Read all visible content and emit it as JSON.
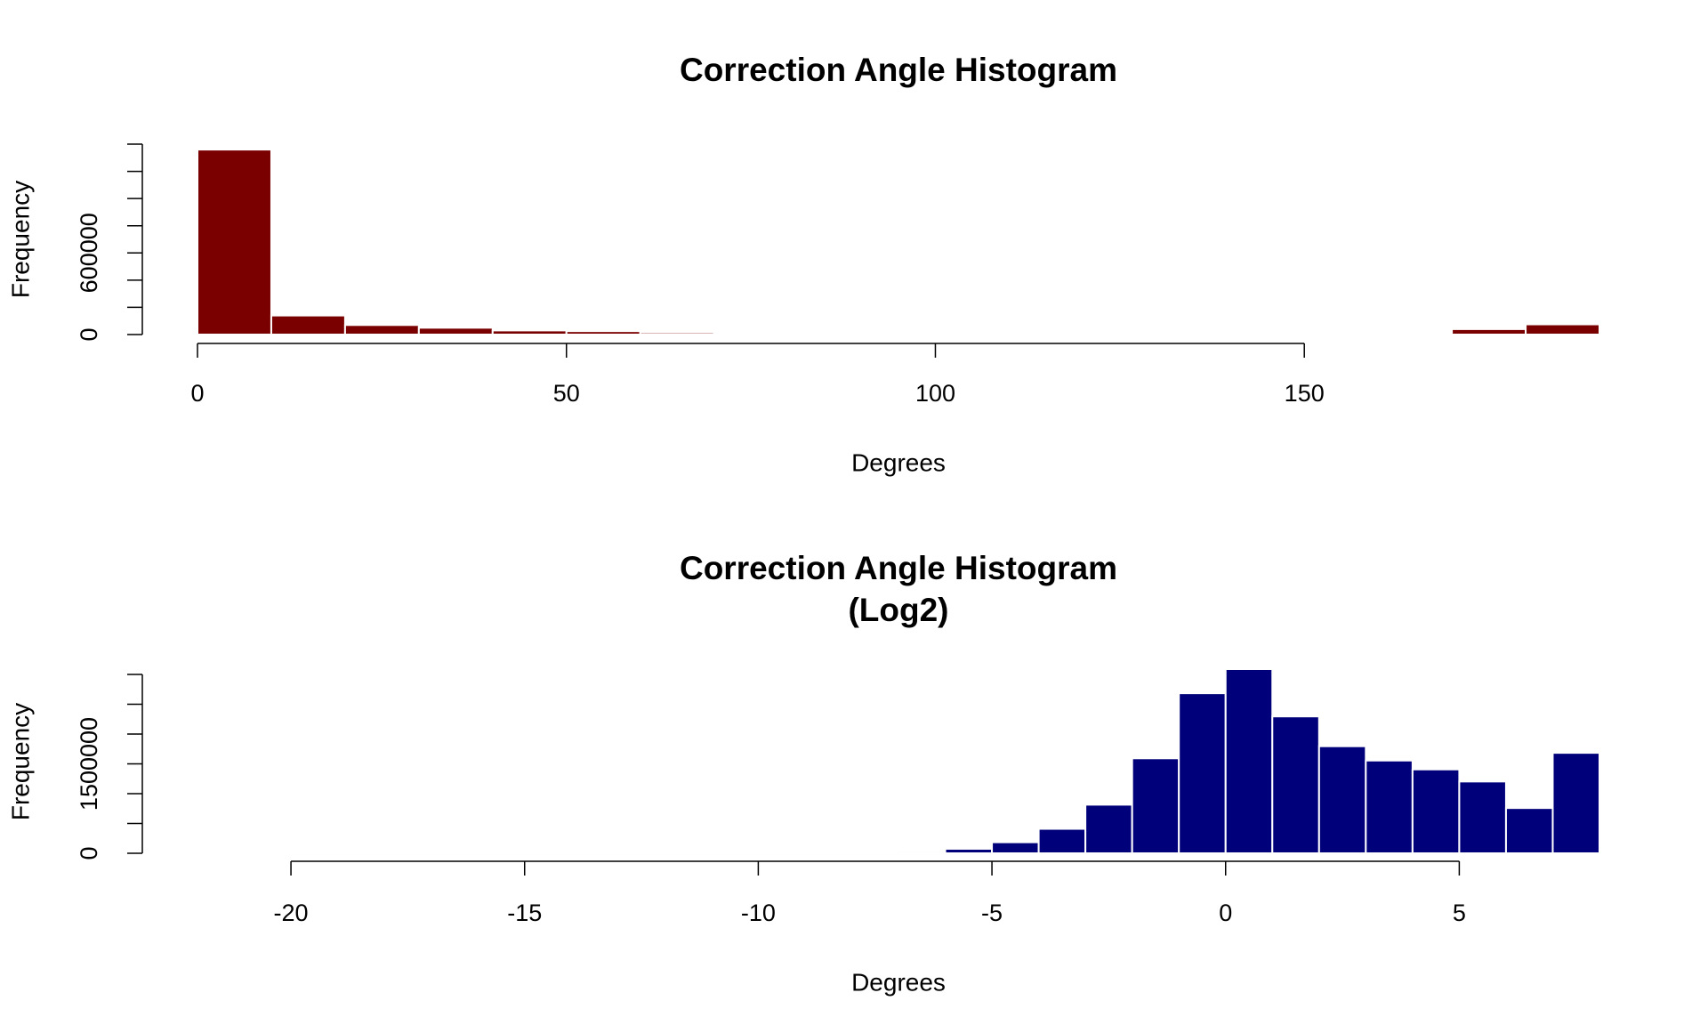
{
  "chart_data": [
    {
      "type": "histogram",
      "title": [
        "Correction Angle Histogram"
      ],
      "xlabel": "Degrees",
      "ylabel": "Frequency",
      "bins": [
        0,
        10,
        20,
        30,
        40,
        50,
        60,
        70,
        80,
        90,
        100,
        110,
        120,
        130,
        140,
        150,
        160,
        170,
        180,
        190
      ],
      "values": [
        1360000,
        140000,
        70000,
        50000,
        30000,
        25000,
        15000,
        8000,
        5000,
        0,
        0,
        0,
        0,
        0,
        0,
        0,
        2000,
        40000,
        75000
      ],
      "color": "#7a0000",
      "edgecolor": "#ffffff",
      "xlim": [
        0,
        190
      ],
      "xticks": [
        0,
        50,
        100,
        150
      ],
      "ylim": [
        0,
        1400000
      ],
      "yticks": [
        0,
        200000,
        400000,
        600000,
        800000,
        1000000,
        1200000,
        1400000
      ]
    },
    {
      "type": "histogram",
      "title": [
        "Correction Angle Histogram",
        "(Log2)"
      ],
      "xlabel": "Degrees",
      "ylabel": "Frequency",
      "bins": [
        -7,
        -6,
        -5,
        -4,
        -3,
        -2,
        -1,
        0,
        1,
        2,
        3,
        4,
        5,
        6,
        7,
        8
      ],
      "values": [
        30000,
        75000,
        185000,
        410000,
        815000,
        1593000,
        2685000,
        3090000,
        2296000,
        1796000,
        1556000,
        1407000,
        1204000,
        759000,
        1685000
      ],
      "color": "#00007a",
      "edgecolor": "#ffffff",
      "xlim": [
        -22,
        8
      ],
      "xticks": [
        -20,
        -15,
        -10,
        -5,
        0,
        5
      ],
      "ylim": [
        0,
        3090000
      ],
      "yticks": [
        0,
        500000,
        1000000,
        1500000,
        2000000,
        2500000,
        3000000
      ]
    }
  ]
}
